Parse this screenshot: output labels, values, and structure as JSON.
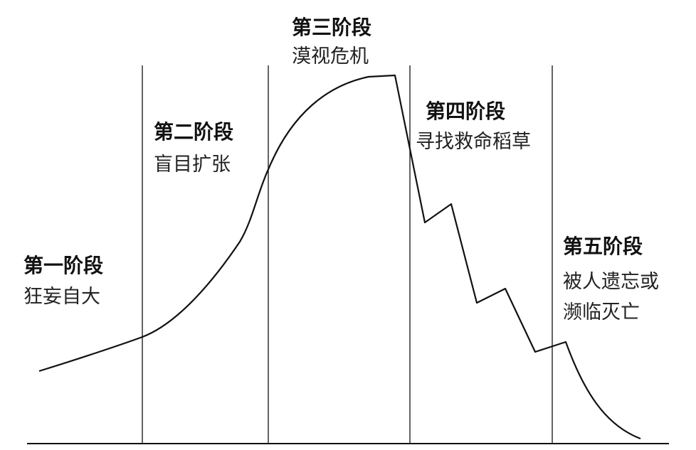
{
  "stages": [
    {
      "title": "第一阶段",
      "desc_lines": [
        "狂妄自大"
      ]
    },
    {
      "title": "第二阶段",
      "desc_lines": [
        "盲目扩张"
      ]
    },
    {
      "title": "第三阶段",
      "desc_lines": [
        "漠视危机"
      ]
    },
    {
      "title": "第四阶段",
      "desc_lines": [
        "寻找救命稻草"
      ]
    },
    {
      "title": "第五阶段",
      "desc_lines": [
        "被人遗忘或",
        "濒临灭亡"
      ]
    }
  ],
  "colors": {
    "line": "#111111",
    "text": "#111111"
  }
}
